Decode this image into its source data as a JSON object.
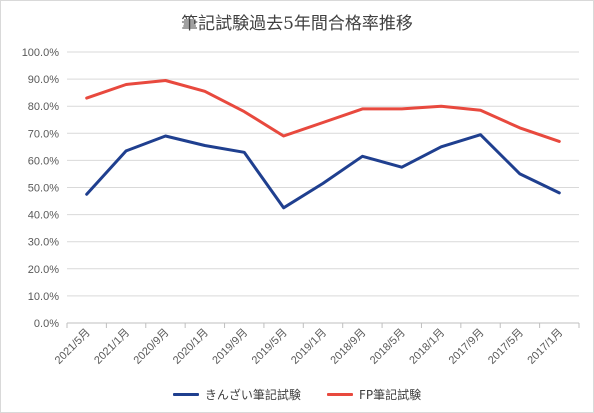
{
  "chart_data": {
    "type": "line",
    "title": "筆記試験過去5年間合格率推移",
    "categories": [
      "2021/5月",
      "2021/1月",
      "2020/9月",
      "2020/1月",
      "2019/9月",
      "2019/5月",
      "2019/1月",
      "2018/9月",
      "2018/5月",
      "2018/1月",
      "2017/9月",
      "2017/5月",
      "2017/1月"
    ],
    "y_ticks": [
      "0.0%",
      "10.0%",
      "20.0%",
      "30.0%",
      "40.0%",
      "50.0%",
      "60.0%",
      "70.0%",
      "80.0%",
      "90.0%",
      "100.0%"
    ],
    "ylim": [
      0,
      100
    ],
    "grid": "horizontal",
    "legend_position": "bottom",
    "series": [
      {
        "name": "きんざい筆記試験",
        "color": "#1f3f8f",
        "values": [
          47.5,
          63.5,
          69.0,
          65.5,
          63.0,
          42.5,
          51.5,
          61.5,
          57.5,
          65.0,
          69.5,
          55.0,
          48.0
        ]
      },
      {
        "name": "FP筆記試験",
        "color": "#e8493e",
        "values": [
          83.0,
          88.0,
          89.5,
          85.5,
          78.0,
          69.0,
          74.0,
          79.0,
          79.0,
          80.0,
          78.5,
          72.0,
          67.0
        ]
      }
    ]
  }
}
